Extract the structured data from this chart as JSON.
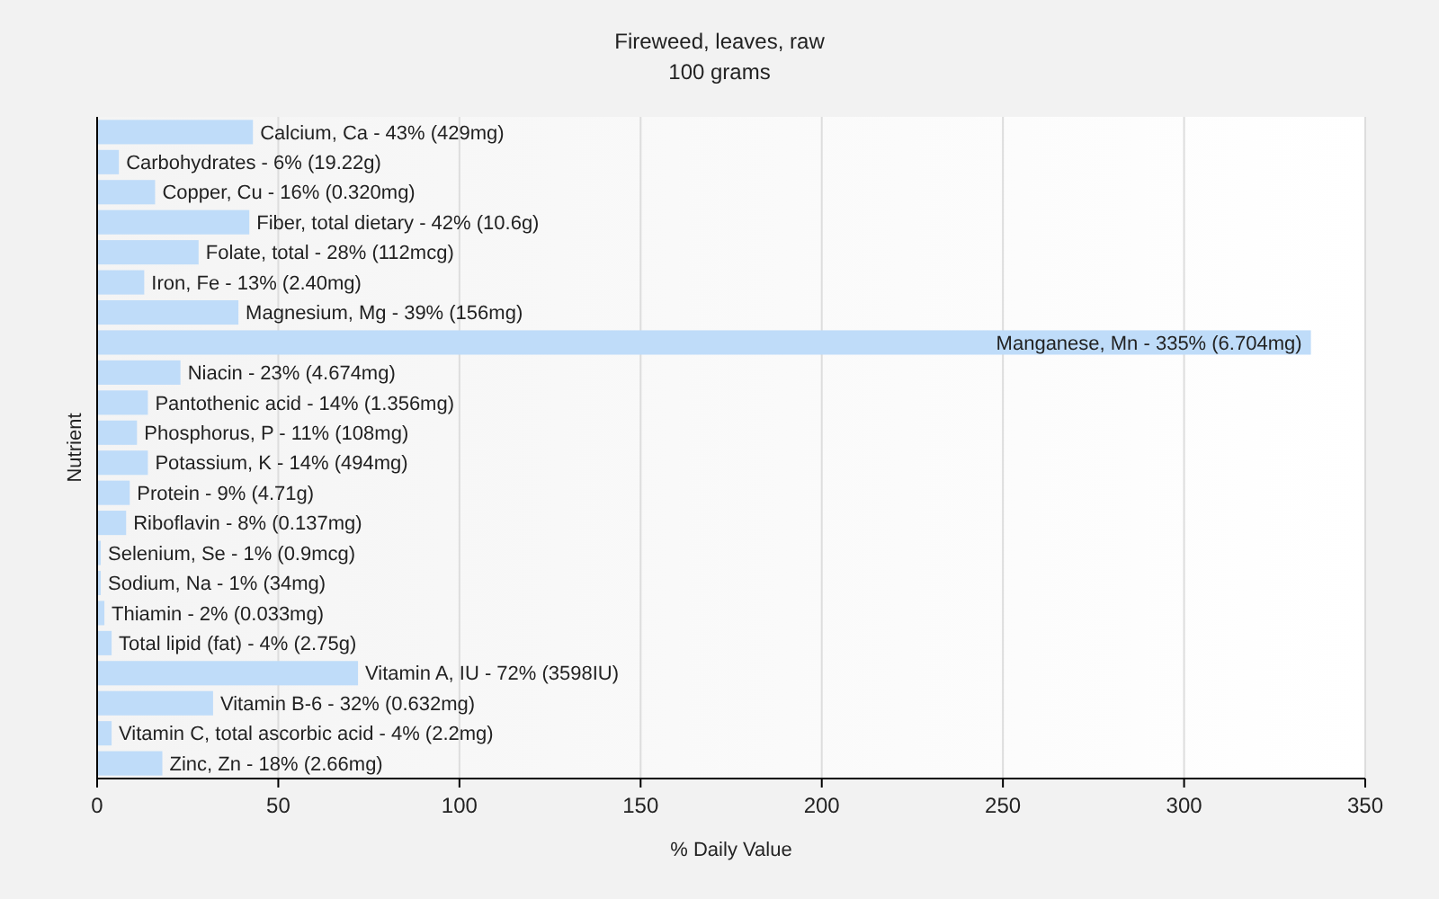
{
  "chart_data": {
    "type": "bar",
    "orientation": "horizontal",
    "title": "Fireweed, leaves, raw",
    "subtitle": "100 grams",
    "xlabel": "% Daily Value",
    "ylabel": "Nutrient",
    "categories": [
      "Calcium, Ca - 43% (429mg)",
      "Carbohydrates - 6% (19.22g)",
      "Copper, Cu - 16% (0.320mg)",
      "Fiber, total dietary - 42% (10.6g)",
      "Folate, total - 28% (112mcg)",
      "Iron, Fe - 13% (2.40mg)",
      "Magnesium, Mg - 39% (156mg)",
      "Manganese, Mn - 335% (6.704mg)",
      "Niacin - 23% (4.674mg)",
      "Pantothenic acid - 14% (1.356mg)",
      "Phosphorus, P - 11% (108mg)",
      "Potassium, K - 14% (494mg)",
      "Protein - 9% (4.71g)",
      "Riboflavin - 8% (0.137mg)",
      "Selenium, Se - 1% (0.9mcg)",
      "Sodium, Na - 1% (34mg)",
      "Thiamin - 2% (0.033mg)",
      "Total lipid (fat) - 4% (2.75g)",
      "Vitamin A, IU - 72% (3598IU)",
      "Vitamin B-6 - 32% (0.632mg)",
      "Vitamin C, total ascorbic acid - 4% (2.2mg)",
      "Zinc, Zn - 18% (2.66mg)"
    ],
    "values": [
      43,
      6,
      16,
      42,
      28,
      13,
      39,
      335,
      23,
      14,
      11,
      14,
      9,
      8,
      1,
      1,
      2,
      4,
      72,
      32,
      4,
      18
    ],
    "color": "#bfdcf9",
    "xlim": [
      0,
      350
    ],
    "xticks": [
      0,
      50,
      100,
      150,
      200,
      250,
      300,
      350
    ],
    "grid": "x"
  }
}
